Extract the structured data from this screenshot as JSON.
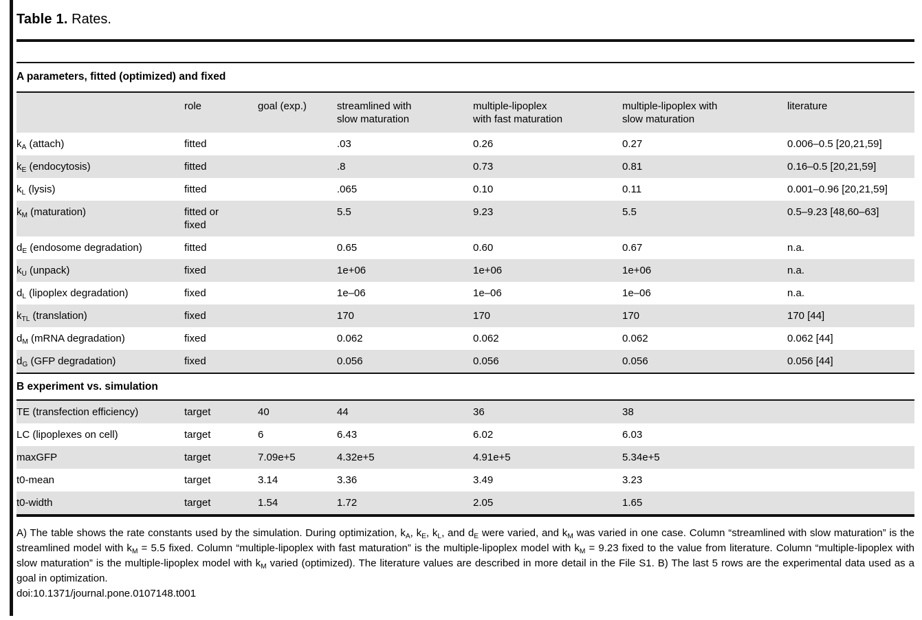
{
  "title": {
    "label": "Table 1.",
    "caption": "Rates."
  },
  "colors": {
    "stripe": "#e1e1e1",
    "rule": "#111111",
    "background": "#ffffff",
    "text": "#000000"
  },
  "section_a": {
    "heading": "A parameters, fitted (optimized) and fixed",
    "columns": [
      "",
      "role",
      "goal (exp.)",
      "streamlined with\nslow maturation",
      "multiple-lipoplex\nwith fast maturation",
      "multiple-lipoplex with\nslow maturation",
      "literature"
    ],
    "rows": [
      {
        "param": [
          {
            "t": "k"
          },
          {
            "sub": "A"
          },
          {
            "t": " (attach)"
          }
        ],
        "role": "fitted",
        "goal": "",
        "streamlined_slow": ".03",
        "multi_fast": "0.26",
        "multi_slow": "0.27",
        "literature": "0.006–0.5 [20,21,59]"
      },
      {
        "param": [
          {
            "t": "k"
          },
          {
            "sub": "E"
          },
          {
            "t": " (endocytosis)"
          }
        ],
        "role": "fitted",
        "goal": "",
        "streamlined_slow": ".8",
        "multi_fast": "0.73",
        "multi_slow": "0.81",
        "literature": "0.16–0.5 [20,21,59]"
      },
      {
        "param": [
          {
            "t": "k"
          },
          {
            "sub": "L"
          },
          {
            "t": " (lysis)"
          }
        ],
        "role": "fitted",
        "goal": "",
        "streamlined_slow": ".065",
        "multi_fast": "0.10",
        "multi_slow": "0.11",
        "literature": "0.001–0.96 [20,21,59]"
      },
      {
        "param": [
          {
            "t": "k"
          },
          {
            "sub": "M"
          },
          {
            "t": " (maturation)"
          }
        ],
        "role": "fitted or\nfixed",
        "goal": "",
        "streamlined_slow": "5.5",
        "multi_fast": "9.23",
        "multi_slow": "5.5",
        "literature": "0.5–9.23 [48,60–63]"
      },
      {
        "param": [
          {
            "t": "d"
          },
          {
            "sub": "E"
          },
          {
            "t": " (endosome degradation)"
          }
        ],
        "role": "fitted",
        "goal": "",
        "streamlined_slow": "0.65",
        "multi_fast": "0.60",
        "multi_slow": "0.67",
        "literature": "n.a."
      },
      {
        "param": [
          {
            "t": "k"
          },
          {
            "sub": "U"
          },
          {
            "t": " (unpack)"
          }
        ],
        "role": "fixed",
        "goal": "",
        "streamlined_slow": "1e+06",
        "multi_fast": "1e+06",
        "multi_slow": "1e+06",
        "literature": "n.a."
      },
      {
        "param": [
          {
            "t": "d"
          },
          {
            "sub": "L"
          },
          {
            "t": " (lipoplex degradation)"
          }
        ],
        "role": "fixed",
        "goal": "",
        "streamlined_slow": "1e–06",
        "multi_fast": "1e–06",
        "multi_slow": "1e–06",
        "literature": "n.a."
      },
      {
        "param": [
          {
            "t": "k"
          },
          {
            "sub": "TL"
          },
          {
            "t": " (translation)"
          }
        ],
        "role": "fixed",
        "goal": "",
        "streamlined_slow": "170",
        "multi_fast": "170",
        "multi_slow": "170",
        "literature": "170 [44]"
      },
      {
        "param": [
          {
            "t": "d"
          },
          {
            "sub": "M"
          },
          {
            "t": " (mRNA degradation)"
          }
        ],
        "role": "fixed",
        "goal": "",
        "streamlined_slow": "0.062",
        "multi_fast": "0.062",
        "multi_slow": "0.062",
        "literature": "0.062 [44]"
      },
      {
        "param": [
          {
            "t": "d"
          },
          {
            "sub": "G"
          },
          {
            "t": " (GFP degradation)"
          }
        ],
        "role": "fixed",
        "goal": "",
        "streamlined_slow": "0.056",
        "multi_fast": "0.056",
        "multi_slow": "0.056",
        "literature": "0.056 [44]"
      }
    ]
  },
  "section_b": {
    "heading": "B experiment vs. simulation",
    "rows": [
      {
        "param": [
          {
            "t": "TE (transfection efficiency)"
          }
        ],
        "role": "target",
        "goal": "40",
        "streamlined_slow": "44",
        "multi_fast": "36",
        "multi_slow": "38",
        "literature": ""
      },
      {
        "param": [
          {
            "t": "LC (lipoplexes on cell)"
          }
        ],
        "role": "target",
        "goal": "6",
        "streamlined_slow": "6.43",
        "multi_fast": "6.02",
        "multi_slow": "6.03",
        "literature": ""
      },
      {
        "param": [
          {
            "t": "maxGFP"
          }
        ],
        "role": "target",
        "goal": "7.09e+5",
        "streamlined_slow": "4.32e+5",
        "multi_fast": "4.91e+5",
        "multi_slow": "5.34e+5",
        "literature": ""
      },
      {
        "param": [
          {
            "t": "t0-mean"
          }
        ],
        "role": "target",
        "goal": "3.14",
        "streamlined_slow": "3.36",
        "multi_fast": "3.49",
        "multi_slow": "3.23",
        "literature": ""
      },
      {
        "param": [
          {
            "t": "t0-width"
          }
        ],
        "role": "target",
        "goal": "1.54",
        "streamlined_slow": "1.72",
        "multi_fast": "2.05",
        "multi_slow": "1.65",
        "literature": ""
      }
    ]
  },
  "footnote": {
    "segments": [
      {
        "t": "A) The table shows the rate constants used by the simulation. During optimization, k"
      },
      {
        "sub": "A"
      },
      {
        "t": ", k"
      },
      {
        "sub": "E"
      },
      {
        "t": ", k"
      },
      {
        "sub": "L"
      },
      {
        "t": ", and d"
      },
      {
        "sub": "E"
      },
      {
        "t": " were varied, and k"
      },
      {
        "sub": "M"
      },
      {
        "t": " was varied in one case. Column “streamlined with slow maturation” is the streamlined model with k"
      },
      {
        "sub": "M"
      },
      {
        "t": " = 5.5 fixed. Column “multiple-lipoplex with fast maturation” is the multiple-lipoplex model with k"
      },
      {
        "sub": "M"
      },
      {
        "t": " = 9.23 fixed to the value from literature. Column “multiple-lipoplex with slow maturation” is the multiple-lipoplex model with k"
      },
      {
        "sub": "M"
      },
      {
        "t": " varied (optimized). The literature values are described in more detail in the File S1. B) The last 5 rows are the experimental data used as a goal in optimization."
      }
    ]
  },
  "doi": "doi:10.1371/journal.pone.0107148.t001"
}
